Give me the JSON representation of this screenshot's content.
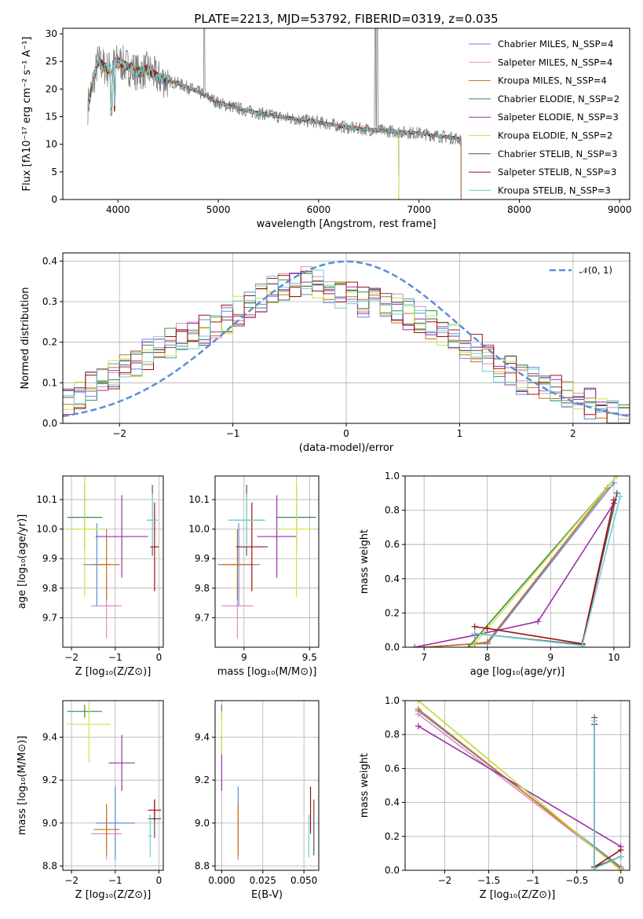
{
  "chart_data": [
    {
      "id": "spectrum",
      "type": "line",
      "title": "PLATE=2213, MJD=53792, FIBERID=0319, z=0.035",
      "xlabel": "wavelength [Angstrom, rest frame]",
      "ylabel": "Flux [fλ10⁻¹⁷ erg cm⁻² s⁻¹ A⁻¹]",
      "xlim": [
        3450,
        9100
      ],
      "ylim": [
        0,
        31
      ],
      "xticks": [
        4000,
        5000,
        6000,
        7000,
        8000,
        9000
      ],
      "yticks": [
        0,
        5,
        10,
        15,
        20,
        25,
        30
      ],
      "grid": false,
      "legend": "top-right",
      "continuum": {
        "x": [
          3700,
          3800,
          3900,
          4000,
          4100,
          4200,
          4300,
          4400,
          4600,
          4800,
          5000,
          5300,
          5600,
          6000,
          6300,
          6600,
          7000,
          7400,
          7420
        ],
        "y": [
          17,
          25,
          23.5,
          25,
          24,
          23,
          23.5,
          22,
          21,
          19.5,
          17.5,
          16,
          15,
          14,
          13,
          12.5,
          12,
          11,
          10.5
        ]
      },
      "series": [
        {
          "name": "Chabrier MILES, N_SSP=4",
          "color": "#5b8dd9",
          "end": 7420
        },
        {
          "name": "Salpeter MILES, N_SSP=4",
          "color": "#e38bb6",
          "end": 7420
        },
        {
          "name": "Kroupa MILES, N_SSP=4",
          "color": "#c9721c",
          "end": 7420
        },
        {
          "name": "Chabrier ELODIE, N_SSP=2",
          "color": "#3c8a4a",
          "end": 6800
        },
        {
          "name": "Salpeter ELODIE, N_SSP=3",
          "color": "#9b2fa8",
          "end": 6800
        },
        {
          "name": "Kroupa ELODIE, N_SSP=2",
          "color": "#cfe34a",
          "end": 6800
        },
        {
          "name": "Chabrier STELIB, N_SSP=3",
          "color": "#555555",
          "end": 9000
        },
        {
          "name": "Salpeter STELIB, N_SSP=3",
          "color": "#a01010",
          "end": 9000
        },
        {
          "name": "Kroupa STELIB, N_SSP=3",
          "color": "#6fd0d6",
          "end": 9000
        }
      ],
      "data_color": "#808080",
      "data_range": [
        3700,
        7420
      ]
    },
    {
      "id": "residuals",
      "type": "histogram",
      "xlabel": "(data-model)/error",
      "ylabel": "Normed distribution",
      "xlim": [
        -2.5,
        2.5
      ],
      "ylim": [
        0,
        0.42
      ],
      "xticks": [
        -2,
        -1,
        0,
        1,
        2
      ],
      "yticks": [
        0.0,
        0.1,
        0.2,
        0.3,
        0.4
      ],
      "grid": true,
      "legend": "top-right",
      "legend_label": "𝒩(0, 1)",
      "gaussian_color": "#5b8dd9",
      "bins": [
        -2.5,
        -2.4,
        -2.3,
        -2.2,
        -2.1,
        -2.0,
        -1.9,
        -1.8,
        -1.7,
        -1.6,
        -1.5,
        -1.4,
        -1.3,
        -1.2,
        -1.1,
        -1.0,
        -0.9,
        -0.8,
        -0.7,
        -0.6,
        -0.5,
        -0.4,
        -0.3,
        -0.2,
        -0.1,
        0.0,
        0.1,
        0.2,
        0.3,
        0.4,
        0.5,
        0.6,
        0.7,
        0.8,
        0.9,
        1.0,
        1.1,
        1.2,
        1.3,
        1.4,
        1.5,
        1.6,
        1.7,
        1.8,
        1.9,
        2.0,
        2.1,
        2.2,
        2.3,
        2.4,
        2.5
      ],
      "base_values": [
        0.06,
        0.07,
        0.09,
        0.1,
        0.12,
        0.13,
        0.15,
        0.17,
        0.18,
        0.2,
        0.21,
        0.22,
        0.23,
        0.25,
        0.26,
        0.28,
        0.3,
        0.31,
        0.33,
        0.34,
        0.35,
        0.35,
        0.34,
        0.33,
        0.32,
        0.31,
        0.3,
        0.3,
        0.29,
        0.28,
        0.27,
        0.26,
        0.24,
        0.23,
        0.21,
        0.19,
        0.18,
        0.16,
        0.14,
        0.13,
        0.11,
        0.1,
        0.09,
        0.08,
        0.07,
        0.06,
        0.05,
        0.04,
        0.03,
        0.02
      ]
    },
    {
      "id": "age-vs-Z",
      "type": "errorbar",
      "xlabel": "Z [log₁₀(Z/Z⊙)]",
      "ylabel": "age  [log₁₀(age/yr)]",
      "xlim": [
        -2.2,
        0.1
      ],
      "ylim": [
        9.6,
        10.18
      ],
      "xticks": [
        -2,
        -1,
        0
      ],
      "yticks": [
        9.7,
        9.8,
        9.9,
        10.0,
        10.1
      ],
      "grid": true,
      "points": [
        {
          "color": "#5b8dd9",
          "x": -1.42,
          "xerr": 0.32,
          "y": 9.88,
          "yerr": 0.14
        },
        {
          "color": "#e38bb6",
          "x": -1.2,
          "xerr": 0.35,
          "y": 9.74,
          "yerr": 0.11
        },
        {
          "color": "#c9721c",
          "x": -1.2,
          "xerr": 0.3,
          "y": 9.88,
          "yerr": 0.12
        },
        {
          "color": "#3c8a4a",
          "x": -1.7,
          "xerr": 0.4,
          "y": 10.04,
          "yerr": 0.11
        },
        {
          "color": "#9b2fa8",
          "x": -0.85,
          "xerr": 0.6,
          "y": 9.975,
          "yerr": 0.14
        },
        {
          "color": "#cfe34a",
          "x": -1.7,
          "xerr": 0.4,
          "y": 10.0,
          "yerr": 0.23
        },
        {
          "color": "#555555",
          "x": -0.15,
          "xerr": 0.12,
          "y": 10.03,
          "yerr": 0.12
        },
        {
          "color": "#a01010",
          "x": -0.1,
          "xerr": 0.1,
          "y": 9.94,
          "yerr": 0.15
        },
        {
          "color": "#6fd0d6",
          "x": -0.15,
          "xerr": 0.12,
          "y": 10.03,
          "yerr": 0.09
        }
      ]
    },
    {
      "id": "age-vs-mass",
      "type": "errorbar",
      "xlabel": "mass [log₁₀(M/M⊙)]",
      "ylabel": "",
      "xlim": [
        8.78,
        9.57
      ],
      "ylim": [
        9.6,
        10.18
      ],
      "xticks": [
        9.0,
        9.5
      ],
      "yticks": [
        9.7,
        9.8,
        9.9,
        10.0,
        10.1
      ],
      "grid": true,
      "points": [
        {
          "color": "#5b8dd9",
          "x": 8.96,
          "xerr": 0.16,
          "y": 9.88,
          "yerr": 0.14
        },
        {
          "color": "#e38bb6",
          "x": 8.95,
          "xerr": 0.12,
          "y": 9.74,
          "yerr": 0.11
        },
        {
          "color": "#c9721c",
          "x": 8.95,
          "xerr": 0.12,
          "y": 9.88,
          "yerr": 0.12
        },
        {
          "color": "#3c8a4a",
          "x": 9.4,
          "xerr": 0.15,
          "y": 10.04,
          "yerr": 0.11
        },
        {
          "color": "#9b2fa8",
          "x": 9.25,
          "xerr": 0.15,
          "y": 9.975,
          "yerr": 0.14
        },
        {
          "color": "#cfe34a",
          "x": 9.4,
          "xerr": 0.15,
          "y": 10.0,
          "yerr": 0.23
        },
        {
          "color": "#555555",
          "x": 9.02,
          "xerr": 0.14,
          "y": 10.03,
          "yerr": 0.12
        },
        {
          "color": "#a01010",
          "x": 9.06,
          "xerr": 0.12,
          "y": 9.94,
          "yerr": 0.15
        },
        {
          "color": "#6fd0d6",
          "x": 9.02,
          "xerr": 0.14,
          "y": 10.03,
          "yerr": 0.09
        }
      ]
    },
    {
      "id": "weight-vs-age",
      "type": "line",
      "xlabel": "age  [log₁₀(age/yr)]",
      "ylabel": "mass weight",
      "xlim": [
        6.7,
        10.25
      ],
      "ylim": [
        0,
        1.0
      ],
      "xticks": [
        7,
        8,
        9,
        10
      ],
      "yticks": [
        0.0,
        0.2,
        0.4,
        0.6,
        0.8,
        1.0
      ],
      "grid": true,
      "series": [
        {
          "color": "#5b8dd9",
          "x": [
            7.0,
            7.8,
            8.0,
            10.0
          ],
          "y": [
            0.0,
            0.02,
            0.02,
            0.96
          ]
        },
        {
          "color": "#e38bb6",
          "x": [
            7.0,
            7.8,
            8.0,
            9.9
          ],
          "y": [
            0.0,
            0.02,
            0.03,
            0.93
          ]
        },
        {
          "color": "#c9721c",
          "x": [
            7.0,
            7.8,
            8.0,
            9.9
          ],
          "y": [
            0.0,
            0.02,
            0.03,
            0.93
          ]
        },
        {
          "color": "#3c8a4a",
          "x": [
            7.7,
            10.05
          ],
          "y": [
            0.0,
            1.0
          ]
        },
        {
          "color": "#9b2fa8",
          "x": [
            6.85,
            7.8,
            8.8,
            10.0
          ],
          "y": [
            0.0,
            0.07,
            0.15,
            0.84
          ]
        },
        {
          "color": "#cfe34a",
          "x": [
            7.75,
            10.05
          ],
          "y": [
            0.0,
            1.0
          ]
        },
        {
          "color": "#555555",
          "x": [
            7.8,
            9.5,
            10.05
          ],
          "y": [
            0.08,
            0.015,
            0.9
          ]
        },
        {
          "color": "#a01010",
          "x": [
            7.8,
            8.0,
            9.5,
            10.0
          ],
          "y": [
            0.12,
            0.11,
            0.02,
            0.86
          ]
        },
        {
          "color": "#6fd0d6",
          "x": [
            7.8,
            9.5,
            10.1
          ],
          "y": [
            0.08,
            0.01,
            0.88
          ]
        }
      ]
    },
    {
      "id": "mass-vs-Z",
      "type": "errorbar",
      "xlabel": "Z [log₁₀(Z/Z⊙)]",
      "ylabel": "mass [log₁₀(M/M⊙)]",
      "xlim": [
        -2.2,
        0.1
      ],
      "ylim": [
        8.78,
        9.57
      ],
      "xticks": [
        -2,
        -1,
        0
      ],
      "yticks": [
        8.8,
        9.0,
        9.2,
        9.4
      ],
      "grid": true,
      "points": [
        {
          "color": "#5b8dd9",
          "x": -1.0,
          "xerr": 0.45,
          "y": 9.0,
          "yerr": 0.17
        },
        {
          "color": "#e38bb6",
          "x": -1.2,
          "xerr": 0.35,
          "y": 8.95,
          "yerr": 0.12
        },
        {
          "color": "#c9721c",
          "x": -1.2,
          "xerr": 0.3,
          "y": 8.97,
          "yerr": 0.12
        },
        {
          "color": "#3c8a4a",
          "x": -1.7,
          "xerr": 0.4,
          "y": 9.52,
          "yerr": 0.03
        },
        {
          "color": "#9b2fa8",
          "x": -0.85,
          "xerr": 0.3,
          "y": 9.28,
          "yerr": 0.13
        },
        {
          "color": "#cfe34a",
          "x": -1.6,
          "xerr": 0.5,
          "y": 9.46,
          "yerr": 0.18
        },
        {
          "color": "#555555",
          "x": -0.1,
          "xerr": 0.15,
          "y": 9.02,
          "yerr": 0.09
        },
        {
          "color": "#a01010",
          "x": -0.1,
          "xerr": 0.15,
          "y": 9.06,
          "yerr": 0.05
        },
        {
          "color": "#6fd0d6",
          "x": -0.2,
          "xerr": 0.05,
          "y": 8.94,
          "yerr": 0.1
        }
      ]
    },
    {
      "id": "mass-vs-ebv",
      "type": "errorbar",
      "xlabel": "E(B-V)",
      "ylabel": "",
      "xlim": [
        -0.004,
        0.059
      ],
      "ylim": [
        8.78,
        9.57
      ],
      "xticks": [
        0.0,
        0.025,
        0.05
      ],
      "xticklabels": [
        "0.000",
        "0.025",
        "0.050"
      ],
      "yticks": [
        8.8,
        9.0,
        9.2,
        9.4
      ],
      "grid": true,
      "points": [
        {
          "color": "#5b8dd9",
          "x": 0.01,
          "xerr": 0,
          "y": 9.0,
          "yerr": 0.17
        },
        {
          "color": "#e38bb6",
          "x": 0.01,
          "xerr": 0,
          "y": 8.95,
          "yerr": 0.12
        },
        {
          "color": "#c9721c",
          "x": 0.01,
          "xerr": 0,
          "y": 8.97,
          "yerr": 0.12
        },
        {
          "color": "#3c8a4a",
          "x": 0.0,
          "xerr": 0,
          "y": 9.52,
          "yerr": 0.03
        },
        {
          "color": "#9b2fa8",
          "x": 0.0,
          "xerr": 0,
          "y": 9.28,
          "yerr": 0.13
        },
        {
          "color": "#cfe34a",
          "x": 0.0,
          "xerr": 0,
          "y": 9.42,
          "yerr": 0.1
        },
        {
          "color": "#555555",
          "x": 0.056,
          "xerr": 0,
          "y": 8.98,
          "yerr": 0.13
        },
        {
          "color": "#a01010",
          "x": 0.054,
          "xerr": 0,
          "y": 9.06,
          "yerr": 0.11
        },
        {
          "color": "#6fd0d6",
          "x": 0.053,
          "xerr": 0,
          "y": 8.94,
          "yerr": 0.1
        }
      ]
    },
    {
      "id": "weight-vs-Z",
      "type": "line",
      "xlabel": "Z [log₁₀(Z/Z⊙)]",
      "ylabel": "mass weight",
      "xlim": [
        -2.45,
        0.1
      ],
      "ylim": [
        0,
        1.0
      ],
      "xticks": [
        -2.0,
        -1.5,
        -1.0,
        -0.5,
        0.0
      ],
      "yticks": [
        0.0,
        0.2,
        0.4,
        0.6,
        0.8,
        1.0
      ],
      "grid": true,
      "series": [
        {
          "color": "#5b8dd9",
          "x": [
            -2.3,
            0.0
          ],
          "y": [
            0.94,
            0.02
          ]
        },
        {
          "color": "#e38bb6",
          "x": [
            -2.3,
            0.0
          ],
          "y": [
            0.92,
            0.01
          ]
        },
        {
          "color": "#c9721c",
          "x": [
            -2.3,
            0.0
          ],
          "y": [
            0.95,
            0.01
          ]
        },
        {
          "color": "#3c8a4a",
          "x": [
            -2.3,
            0.0
          ],
          "y": [
            1.0,
            0.0
          ]
        },
        {
          "color": "#9b2fa8",
          "x": [
            -2.3,
            0.0
          ],
          "y": [
            0.85,
            0.14
          ]
        },
        {
          "color": "#cfe34a",
          "x": [
            -2.3,
            0.0
          ],
          "y": [
            1.0,
            0.0
          ]
        },
        {
          "color": "#555555",
          "x": [
            -0.3,
            -0.3,
            0.0
          ],
          "y": [
            0.9,
            0.02,
            0.08
          ]
        },
        {
          "color": "#a01010",
          "x": [
            -0.3,
            -0.3,
            0.0
          ],
          "y": [
            0.86,
            0.02,
            0.12
          ]
        },
        {
          "color": "#6fd0d6",
          "x": [
            -0.3,
            -0.3,
            0.0
          ],
          "y": [
            0.88,
            0.01,
            0.08
          ]
        }
      ]
    }
  ]
}
